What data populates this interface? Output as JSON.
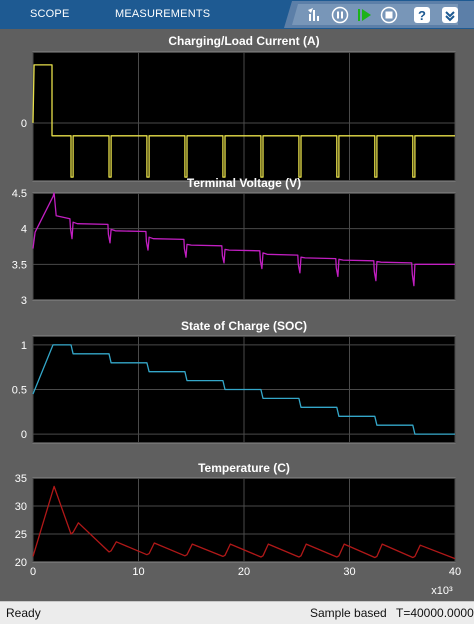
{
  "toolbar": {
    "tabs": [
      "SCOPE",
      "MEASUREMENTS"
    ],
    "icons": [
      "signal-select-icon",
      "pause-icon",
      "run-icon",
      "stop-icon",
      "help-icon",
      "expand-icon"
    ]
  },
  "status": {
    "ready": "Ready",
    "mode": "Sample based",
    "time": "T=40000.0000"
  },
  "colors": {
    "toolbar": "#1e5a92",
    "plot_background": "#000000",
    "figure_background": "#5f5f5f",
    "current": "#e8e04a",
    "voltage": "#c21fc2",
    "soc": "#34a7c9",
    "temperature": "#b01818"
  },
  "chart_data": [
    {
      "type": "line",
      "title": "Charging/Load Current (A)",
      "xlim": [
        0,
        40
      ],
      "ylim": [
        -4.5,
        5.5
      ],
      "yticks": [
        0
      ],
      "ytick_labels": [
        "0"
      ],
      "x": [
        0,
        0.1,
        1.8,
        1.8,
        3.6,
        3.6,
        3.8,
        3.8,
        7.2,
        7.2,
        7.4,
        7.4,
        10.8,
        10.8,
        11.0,
        11.0,
        14.4,
        14.4,
        14.6,
        14.6,
        18.0,
        18.0,
        18.2,
        18.2,
        21.6,
        21.6,
        21.8,
        21.8,
        25.2,
        25.2,
        25.4,
        25.4,
        28.8,
        28.8,
        29.0,
        29.0,
        32.4,
        32.4,
        32.6,
        32.6,
        36.0,
        36.0,
        36.2,
        36.2,
        40
      ],
      "series": [
        {
          "values": [
            0,
            4.5,
            4.5,
            -1,
            -1,
            -4.2,
            -4.2,
            -1,
            -1,
            -4.2,
            -4.2,
            -1,
            -1,
            -4.2,
            -4.2,
            -1,
            -1,
            -4.2,
            -4.2,
            -1,
            -1,
            -4.2,
            -4.2,
            -1,
            -1,
            -4.2,
            -4.2,
            -1,
            -1,
            -4.2,
            -4.2,
            -1,
            -1,
            -4.2,
            -4.2,
            -1,
            -1,
            -4.2,
            -4.2,
            -1,
            -1,
            -4.2,
            -4.2,
            -1,
            -1
          ]
        }
      ],
      "grid": true
    },
    {
      "type": "line",
      "title": "Terminal Voltage (V)",
      "xlim": [
        0,
        40
      ],
      "ylim": [
        3.0,
        4.5
      ],
      "yticks": [
        3,
        3.5,
        4,
        4.5
      ],
      "ytick_labels": [
        "3",
        "3.5",
        "4",
        "4.5"
      ],
      "x": [
        0,
        0.2,
        1.9,
        2.0,
        2.2,
        3.5,
        3.55,
        3.7,
        3.8,
        4.2,
        7.1,
        7.15,
        7.3,
        7.4,
        7.8,
        10.7,
        10.75,
        10.9,
        11.0,
        11.4,
        14.3,
        14.35,
        14.5,
        14.6,
        15.0,
        17.9,
        17.95,
        18.1,
        18.2,
        18.6,
        21.5,
        21.55,
        21.7,
        21.8,
        22.2,
        25.1,
        25.15,
        25.3,
        25.4,
        25.8,
        28.7,
        28.75,
        28.9,
        29.0,
        29.4,
        32.3,
        32.35,
        32.5,
        32.6,
        33.0,
        35.9,
        35.95,
        36.1,
        36.2,
        36.6,
        40
      ],
      "series": [
        {
          "values": [
            3.72,
            3.95,
            4.45,
            4.5,
            4.18,
            4.14,
            4.0,
            3.86,
            4.09,
            4.07,
            4.06,
            3.92,
            3.8,
            3.99,
            3.97,
            3.96,
            3.82,
            3.7,
            3.88,
            3.86,
            3.85,
            3.72,
            3.6,
            3.78,
            3.77,
            3.76,
            3.62,
            3.52,
            3.71,
            3.7,
            3.69,
            3.55,
            3.44,
            3.66,
            3.64,
            3.63,
            3.5,
            3.38,
            3.6,
            3.59,
            3.58,
            3.45,
            3.33,
            3.57,
            3.56,
            3.55,
            3.4,
            3.27,
            3.54,
            3.53,
            3.52,
            3.36,
            3.2,
            3.5,
            3.5,
            3.5
          ]
        }
      ],
      "grid": true
    },
    {
      "type": "line",
      "title": "State of Charge (SOC)",
      "xlim": [
        0,
        40
      ],
      "ylim": [
        -0.1,
        1.1
      ],
      "yticks": [
        0,
        0.5,
        1
      ],
      "ytick_labels": [
        "0",
        "0.5",
        "1"
      ],
      "x": [
        0,
        1.9,
        3.6,
        3.8,
        7.2,
        7.4,
        10.8,
        11.0,
        14.4,
        14.6,
        18.0,
        18.2,
        21.6,
        21.8,
        25.2,
        25.4,
        28.8,
        29.0,
        32.4,
        32.6,
        36.0,
        36.2,
        40
      ],
      "series": [
        {
          "values": [
            0.45,
            1.0,
            1.0,
            0.9,
            0.9,
            0.8,
            0.8,
            0.7,
            0.7,
            0.6,
            0.6,
            0.5,
            0.5,
            0.4,
            0.4,
            0.3,
            0.3,
            0.2,
            0.2,
            0.1,
            0.1,
            0.0,
            0.0
          ]
        }
      ],
      "grid": true
    },
    {
      "type": "line",
      "title": "Temperature (C)",
      "xlim": [
        0,
        40
      ],
      "ylim": [
        20,
        35
      ],
      "yticks": [
        20,
        25,
        30,
        35
      ],
      "ytick_labels": [
        "20",
        "25",
        "30",
        "35"
      ],
      "xticks": [
        0,
        10,
        20,
        30,
        40
      ],
      "xtick_labels": [
        "0",
        "10",
        "20",
        "30",
        "40"
      ],
      "x_multiplier": "x10³",
      "x": [
        0,
        2.0,
        3.6,
        3.8,
        4.3,
        7.2,
        7.4,
        7.9,
        10.8,
        11.0,
        11.5,
        14.4,
        14.6,
        15.1,
        18.0,
        18.2,
        18.7,
        21.6,
        21.8,
        22.3,
        25.2,
        25.4,
        25.9,
        28.8,
        29.0,
        29.5,
        32.4,
        32.6,
        33.1,
        36.0,
        36.2,
        36.7,
        40
      ],
      "series": [
        {
          "values": [
            21.0,
            33.5,
            25.0,
            25.3,
            27.0,
            21.8,
            22.0,
            23.6,
            21.3,
            21.5,
            23.4,
            21.1,
            21.3,
            23.2,
            21.0,
            21.2,
            23.2,
            20.9,
            21.1,
            23.2,
            20.9,
            21.1,
            23.2,
            20.9,
            21.1,
            23.2,
            20.8,
            21.0,
            23.2,
            20.8,
            21.0,
            23.0,
            20.6
          ]
        }
      ],
      "grid": true
    }
  ]
}
